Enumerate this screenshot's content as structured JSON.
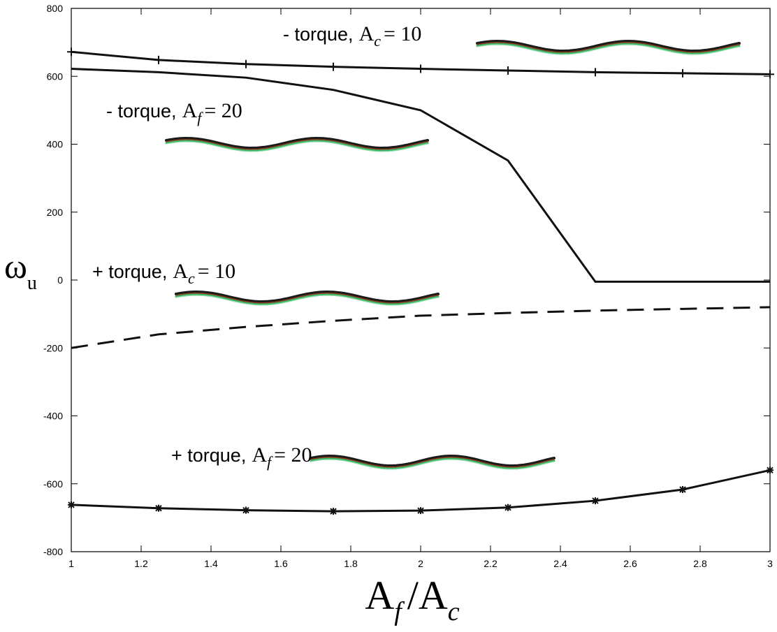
{
  "chart_data": {
    "type": "line",
    "x": [
      1,
      1.25,
      1.5,
      1.75,
      2,
      2.25,
      2.5,
      2.75,
      3
    ],
    "series": [
      {
        "color": "#111111",
        "marker": "+",
        "dashed": false,
        "values": [
          672,
          648,
          636,
          628,
          622,
          617,
          612,
          609,
          606
        ]
      },
      {
        "color": "#111111",
        "marker": "none",
        "dashed": false,
        "values": [
          622,
          612,
          596,
          560,
          500,
          352,
          -5,
          -5,
          -5
        ]
      },
      {
        "color": "#111111",
        "marker": "none",
        "dashed": true,
        "values": [
          -200,
          -160,
          -138,
          -120,
          -105,
          -97,
          -90,
          -85,
          -80
        ]
      },
      {
        "color": "#111111",
        "marker": "*",
        "dashed": false,
        "values": [
          -662,
          -672,
          -678,
          -681,
          -679,
          -670,
          -650,
          -617,
          -560
        ]
      }
    ],
    "xlim": [
      1,
      3
    ],
    "ylim": [
      -800,
      800
    ],
    "xticks": [
      1,
      1.2,
      1.4,
      1.6,
      1.8,
      2,
      2.2,
      2.4,
      2.6,
      2.8,
      3
    ],
    "yticks": [
      -800,
      -600,
      -400,
      -200,
      0,
      200,
      400,
      600,
      800
    ],
    "grid": false,
    "x_label": {
      "symbol": "A",
      "sub": "f",
      "rest": "/A",
      "sub2": "c"
    },
    "y_label": {
      "symbol": "ω",
      "sub": "u"
    },
    "annotations": [
      {
        "text": "- torque,",
        "symbol": "A",
        "sub": "c",
        "rest": "= 10"
      },
      {
        "text": "- torque,",
        "symbol": "A",
        "sub": "f",
        "rest": "= 20"
      },
      {
        "text": "+ torque,",
        "symbol": "A",
        "sub": "c",
        "rest": "= 10"
      },
      {
        "text": "+ torque,",
        "symbol": "A",
        "sub": "f",
        "rest": "= 20"
      }
    ]
  }
}
